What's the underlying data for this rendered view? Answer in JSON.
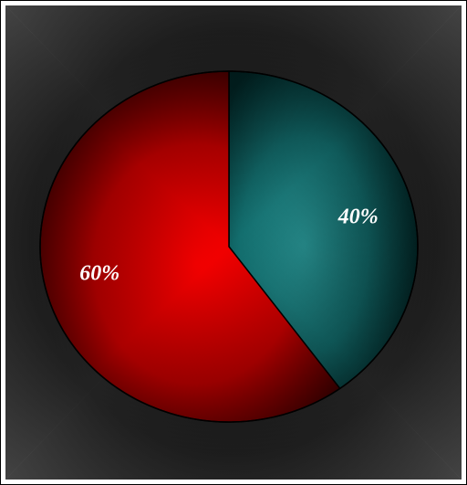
{
  "chart_data": {
    "type": "pie",
    "title": "",
    "categories": [
      "",
      ""
    ],
    "values": [
      40,
      60
    ],
    "labels": [
      "40%",
      "60%"
    ],
    "colors": [
      "#1f8a8a",
      "#ff0000"
    ],
    "start_angle_deg": 0,
    "direction": "clockwise",
    "legend": "none",
    "background": {
      "frame_dark": "#0e0e0e",
      "frame_light": "#8c8c8c",
      "outer_border": "#000000",
      "outer_fill": "#ffffff"
    }
  }
}
